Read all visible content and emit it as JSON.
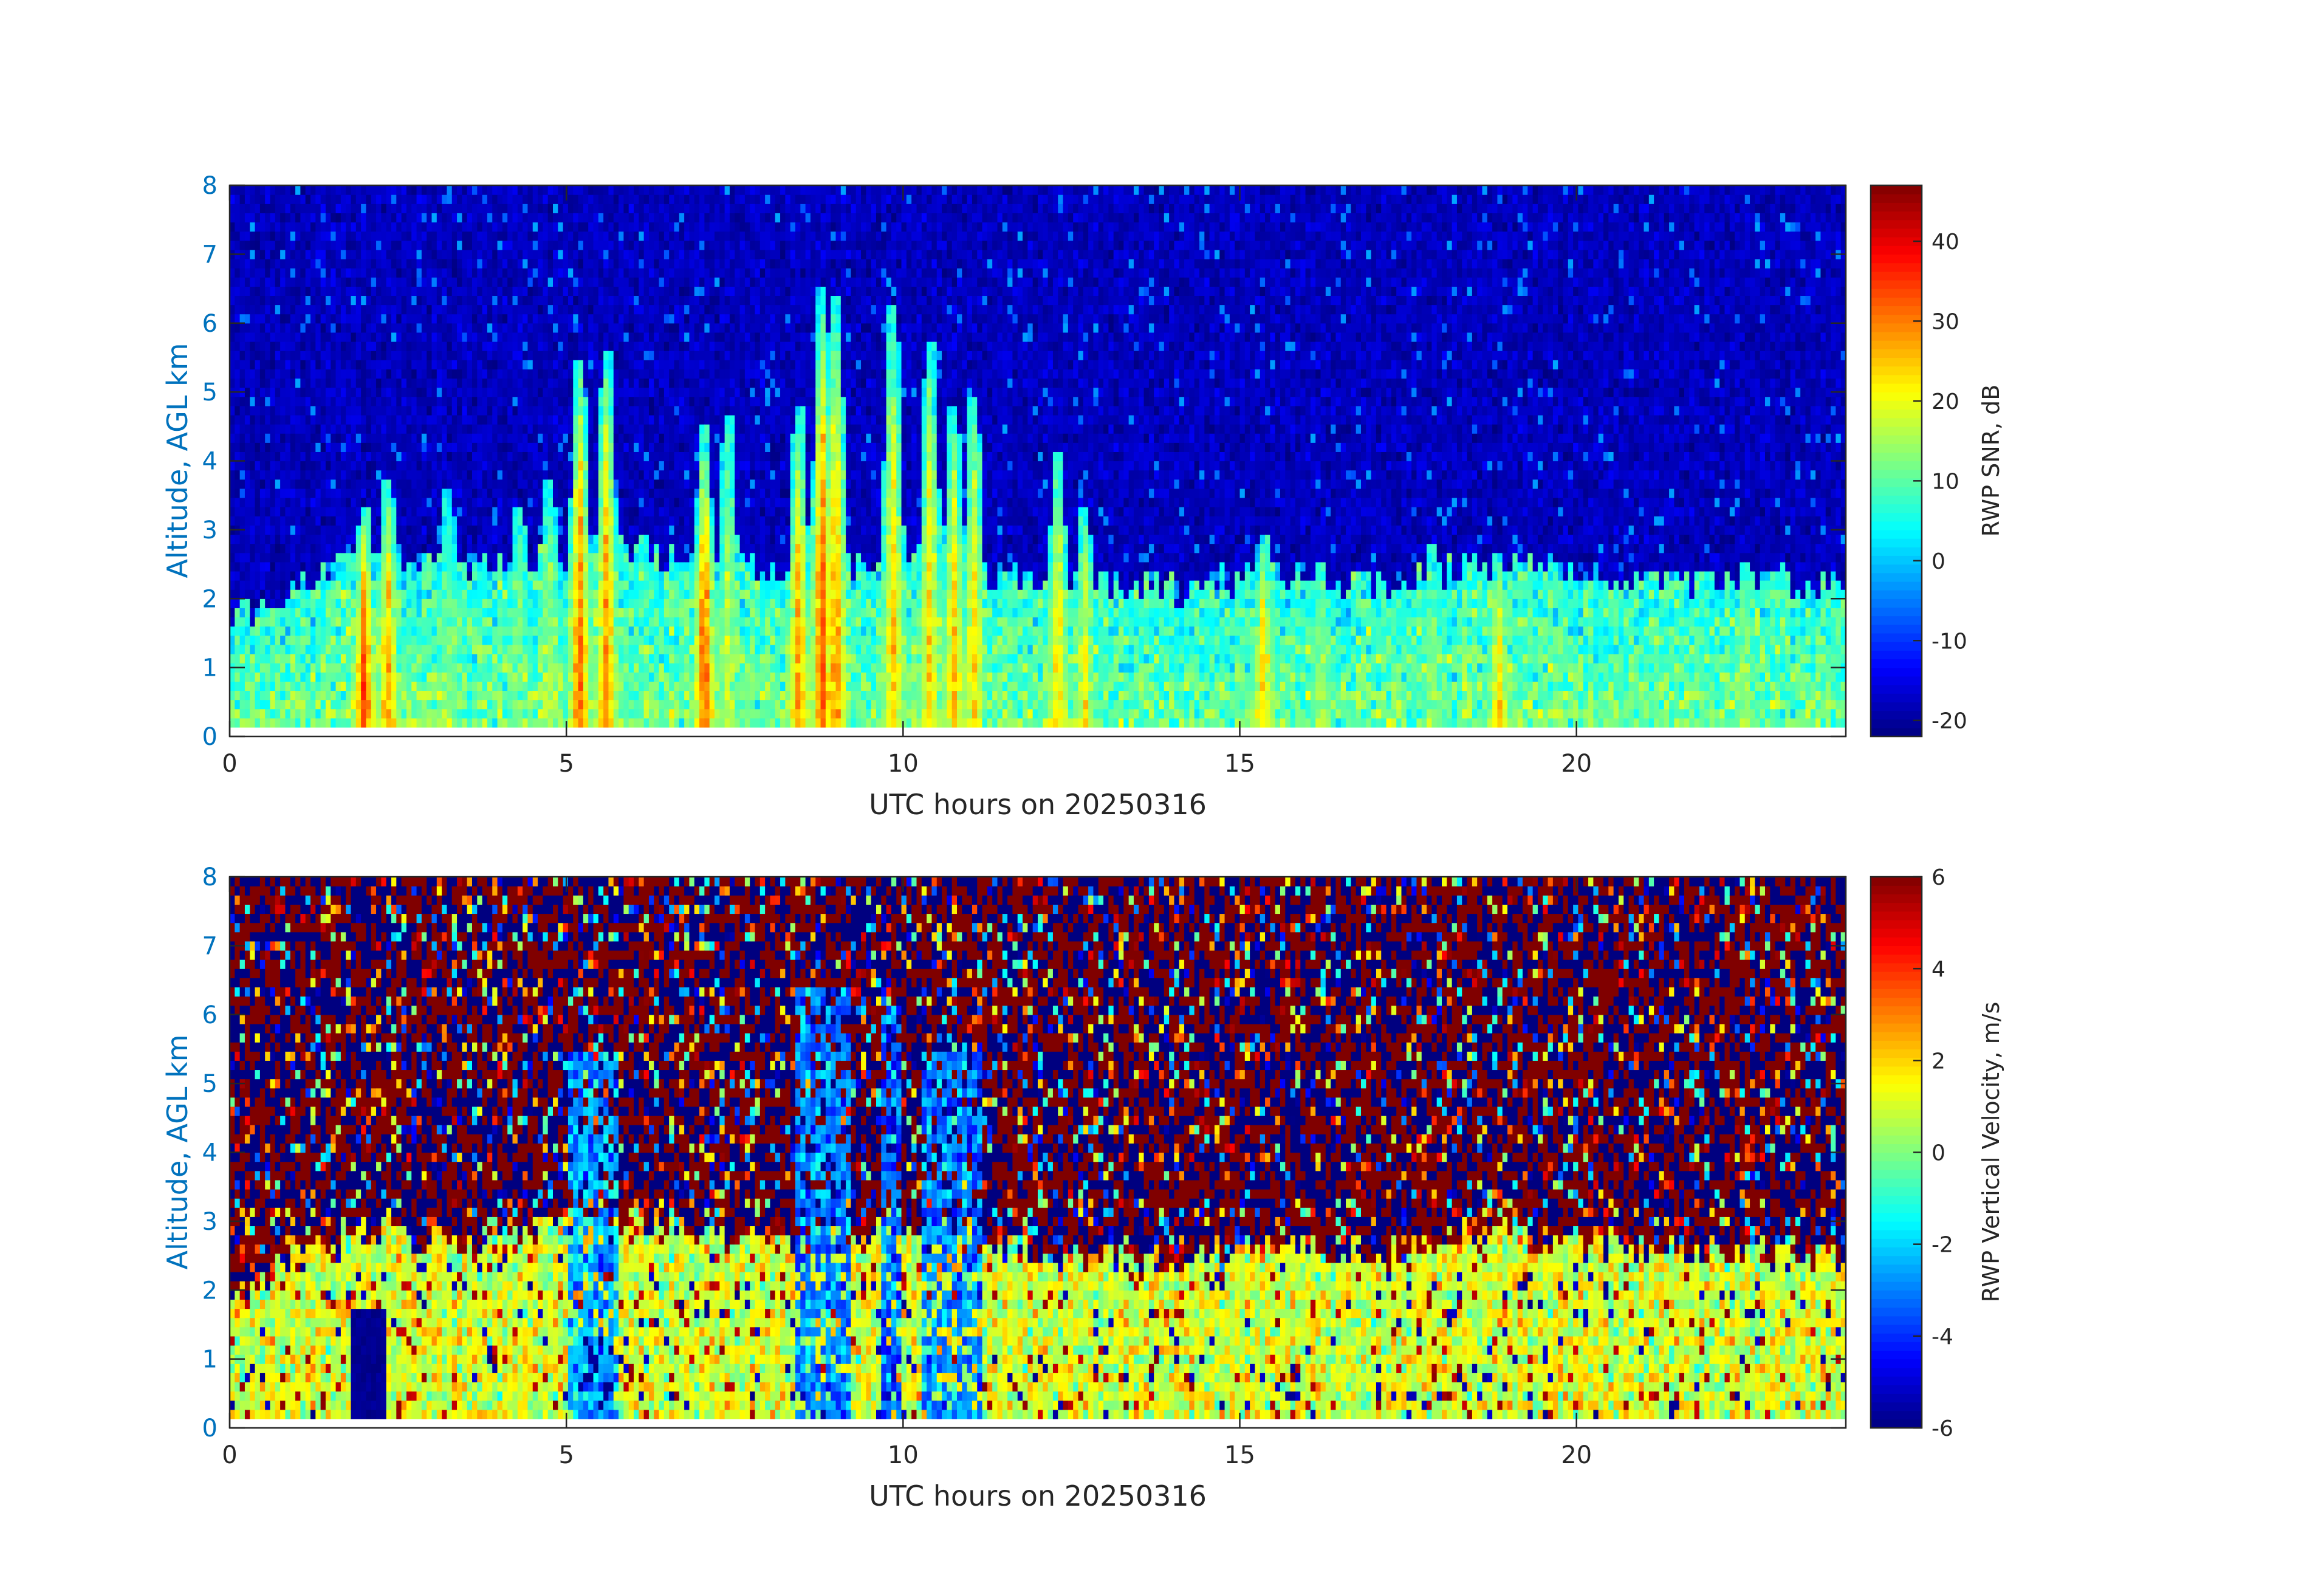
{
  "chart_data": [
    {
      "type": "heatmap",
      "title": "",
      "xlabel": "UTC hours on 20250316",
      "ylabel": "Altitude, AGL km",
      "xlim": [
        0,
        24
      ],
      "ylim": [
        0,
        8
      ],
      "xticks": [
        0,
        5,
        10,
        15,
        20
      ],
      "yticks": [
        0,
        1,
        2,
        3,
        4,
        5,
        6,
        7,
        8
      ],
      "colormap": "jet",
      "colorbar": {
        "label": "RWP SNR, dB",
        "range": [
          -22,
          47
        ],
        "ticks": [
          -20,
          -10,
          0,
          10,
          20,
          30,
          40
        ]
      },
      "data_floor_km": 0.2,
      "background_level_db": -18,
      "boundary_layer_top_km": [
        [
          0,
          1.7
        ],
        [
          1.8,
          2.6
        ],
        [
          3,
          2.4
        ],
        [
          6,
          2.7
        ],
        [
          8,
          2.4
        ],
        [
          10,
          2.5
        ],
        [
          12,
          2.3
        ],
        [
          14,
          2.1
        ],
        [
          15.5,
          2.4
        ],
        [
          17,
          2.2
        ],
        [
          19,
          2.5
        ],
        [
          21,
          2.3
        ],
        [
          24,
          2.2
        ]
      ],
      "features": [
        {
          "x": 2.0,
          "top_km": 3.4,
          "peak_db": 36
        },
        {
          "x": 2.35,
          "top_km": 3.8,
          "peak_db": 28
        },
        {
          "x": 3.25,
          "top_km": 3.6,
          "peak_db": 12
        },
        {
          "x": 4.3,
          "top_km": 3.4,
          "peak_db": 12
        },
        {
          "x": 4.75,
          "top_km": 3.7,
          "peak_db": 16
        },
        {
          "x": 5.2,
          "top_km": 5.5,
          "peak_db": 32
        },
        {
          "x": 5.6,
          "top_km": 5.6,
          "peak_db": 30
        },
        {
          "x": 7.05,
          "top_km": 4.5,
          "peak_db": 34
        },
        {
          "x": 7.4,
          "top_km": 4.7,
          "peak_db": 18
        },
        {
          "x": 8.45,
          "top_km": 4.8,
          "peak_db": 28
        },
        {
          "x": 8.8,
          "top_km": 6.5,
          "peak_db": 34
        },
        {
          "x": 9.0,
          "top_km": 6.4,
          "peak_db": 30
        },
        {
          "x": 9.85,
          "top_km": 6.3,
          "peak_db": 26
        },
        {
          "x": 10.4,
          "top_km": 5.8,
          "peak_db": 24
        },
        {
          "x": 10.75,
          "top_km": 4.8,
          "peak_db": 26
        },
        {
          "x": 11.05,
          "top_km": 4.9,
          "peak_db": 24
        },
        {
          "x": 12.3,
          "top_km": 4.1,
          "peak_db": 24
        },
        {
          "x": 12.7,
          "top_km": 3.3,
          "peak_db": 22
        },
        {
          "x": 15.35,
          "top_km": 2.9,
          "peak_db": 26
        },
        {
          "x": 16.2,
          "top_km": 2.5,
          "peak_db": 16
        },
        {
          "x": 17.85,
          "top_km": 2.8,
          "peak_db": 14
        },
        {
          "x": 18.85,
          "top_km": 2.6,
          "peak_db": 26
        },
        {
          "x": 22.5,
          "top_km": 2.5,
          "peak_db": 16
        }
      ]
    },
    {
      "type": "heatmap",
      "title": "",
      "xlabel": "UTC hours on 20250316",
      "ylabel": "Altitude, AGL km",
      "xlim": [
        0,
        24
      ],
      "ylim": [
        0,
        8
      ],
      "xticks": [
        0,
        5,
        10,
        15,
        20
      ],
      "yticks": [
        0,
        1,
        2,
        3,
        4,
        5,
        6,
        7,
        8
      ],
      "colormap": "jet",
      "colorbar": {
        "label": "RWP Vertical Velocity, m/s",
        "range": [
          -6,
          6
        ],
        "ticks": [
          -6,
          -4,
          -2,
          0,
          2,
          4,
          6
        ]
      },
      "data_floor_km": 0.2,
      "noise_above_signal_top": true,
      "boundary_layer_mean_ms": 1.0,
      "updraft_columns": [
        {
          "x_range": [
            1.8,
            2.35
          ],
          "top_km": 1.7,
          "value_ms": -6
        },
        {
          "x_range": [
            5.15,
            5.7
          ],
          "top_km": 1.3,
          "value_ms": -6
        },
        {
          "x_range": [
            5.0,
            5.75
          ],
          "top_km": 5.5,
          "value_ms": -2.5
        },
        {
          "x_range": [
            8.4,
            9.2
          ],
          "top_km": 6.4,
          "value_ms": -3
        },
        {
          "x_range": [
            9.7,
            10.0
          ],
          "top_km": 6.2,
          "value_ms": -3.5
        },
        {
          "x_range": [
            10.3,
            11.2
          ],
          "top_km": 5.5,
          "value_ms": -3
        }
      ]
    }
  ]
}
